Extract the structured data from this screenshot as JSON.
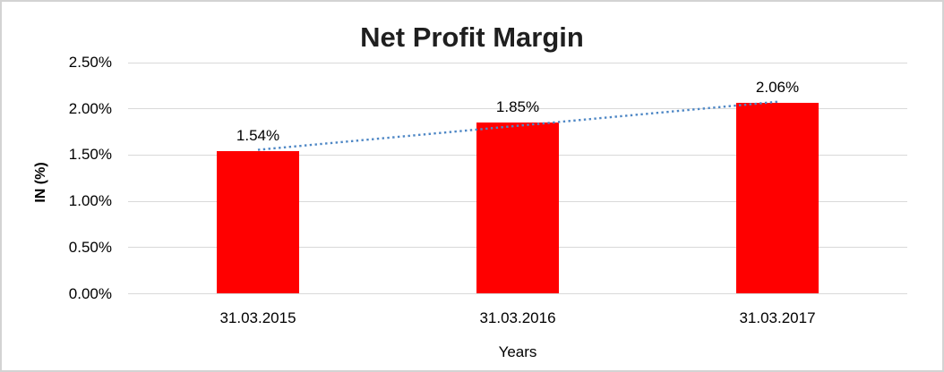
{
  "chart_data": {
    "type": "bar",
    "title": "Net Profit Margin",
    "xlabel": "Years",
    "ylabel": "IN (%)",
    "categories": [
      "31.03.2015",
      "31.03.2016",
      "31.03.2017"
    ],
    "values": [
      1.54,
      1.85,
      2.06
    ],
    "data_labels": [
      "1.54%",
      "1.85%",
      "2.06%"
    ],
    "value_units": "percent",
    "ylim": [
      0,
      2.5
    ],
    "ytick_values": [
      0,
      0.5,
      1.0,
      1.5,
      2.0,
      2.5
    ],
    "ytick_labels": [
      "0.00%",
      "0.50%",
      "1.00%",
      "1.50%",
      "2.00%",
      "2.50%"
    ],
    "grid": true,
    "legend": "none",
    "bar_color": "#FF0000",
    "trendline": {
      "type": "linear",
      "style": "dotted",
      "color": "#4E87C5"
    },
    "colors": {
      "gridline": "#D9D9D9",
      "frame_border": "#D3D3D3",
      "text": "#000000",
      "title_text": "#1F1F1F",
      "background": "#FFFFFF"
    }
  }
}
